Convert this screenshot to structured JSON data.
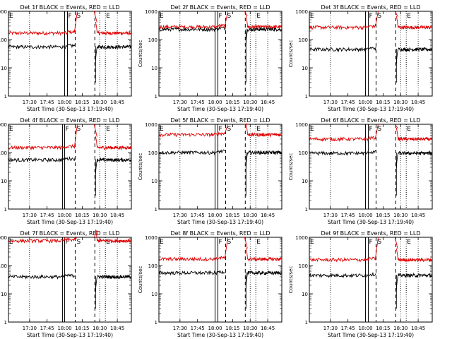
{
  "figure": {
    "start_time_label": "Start Time (30-Sep-13 17:19:40)",
    "ylabel": "Counts/sec",
    "title_suffix": " BLACK = Events, RED = LLD"
  },
  "colors": {
    "events": "#000000",
    "lld": "#e00000"
  },
  "axes": {
    "x_range_minutes": [
      17.2,
      18.95
    ],
    "x_ticks": [
      "17:30",
      "17:45",
      "18:00",
      "18:15",
      "18:30",
      "18:45"
    ],
    "x_tick_values_hours": [
      17.5,
      17.75,
      18.0,
      18.25,
      18.5,
      18.75
    ],
    "y_scale": "log",
    "y_range": [
      1,
      1000
    ],
    "y_ticks": [
      "1",
      "10",
      "100",
      "1000"
    ]
  },
  "markers": {
    "E1_hour": 17.22,
    "F1_hour": 18.0,
    "F2_hour": 18.04,
    "S_hour": 18.15,
    "dashed_hour": 18.43,
    "E2_hour": 18.58,
    "labels": {
      "E": "E",
      "F": "F",
      "S": "S"
    }
  },
  "chart_data": [
    {
      "type": "line",
      "detector": "Det 1f",
      "title": "Det 1f BLACK = Events, RED = LLD",
      "events_level": 55,
      "lld_level": 170,
      "f_span": [
        18.0,
        18.04
      ],
      "series": [
        {
          "name": "BLACK = Events"
        },
        {
          "name": "RED = LLD"
        }
      ]
    },
    {
      "type": "line",
      "detector": "Det 2f",
      "title": "Det 2f BLACK = Events, RED = LLD",
      "events_level": 230,
      "lld_level": 280,
      "f_span": [
        18.0,
        18.04
      ],
      "series": [
        {
          "name": "BLACK = Events"
        },
        {
          "name": "RED = LLD"
        }
      ]
    },
    {
      "type": "line",
      "detector": "Det 3f",
      "title": "Det 3f BLACK = Events, RED = LLD",
      "events_level": 45,
      "lld_level": 270,
      "f_span": [
        18.0,
        18.04
      ],
      "series": [
        {
          "name": "BLACK = Events"
        },
        {
          "name": "RED = LLD"
        }
      ]
    },
    {
      "type": "line",
      "detector": "Det 4f",
      "title": "Det 4f BLACK = Events, RED = LLD",
      "events_level": 55,
      "lld_level": 150,
      "f_span": [
        17.97,
        18.0
      ],
      "series": [
        {
          "name": "BLACK = Events"
        },
        {
          "name": "RED = LLD"
        }
      ]
    },
    {
      "type": "line",
      "detector": "Det 5f",
      "title": "Det 5f BLACK = Events, RED = LLD",
      "events_level": 100,
      "lld_level": 430,
      "f_span": [
        18.0,
        18.04
      ],
      "series": [
        {
          "name": "BLACK = Events"
        },
        {
          "name": "RED = LLD"
        }
      ]
    },
    {
      "type": "line",
      "detector": "Det 6f",
      "title": "Det 6f BLACK = Events, RED = LLD",
      "events_level": 95,
      "lld_level": 300,
      "f_span": [
        18.0,
        18.04
      ],
      "series": [
        {
          "name": "BLACK = Events"
        },
        {
          "name": "RED = LLD"
        }
      ]
    },
    {
      "type": "line",
      "detector": "Det 7f",
      "title": "Det 7f BLACK = Events, RED = LLD",
      "events_level": 40,
      "lld_level": 750,
      "f_span": [
        17.97,
        18.0
      ],
      "series": [
        {
          "name": "BLACK = Events"
        },
        {
          "name": "RED = LLD"
        }
      ]
    },
    {
      "type": "line",
      "detector": "Det 8f",
      "title": "Det 8f BLACK = Events, RED = LLD",
      "events_level": 55,
      "lld_level": 170,
      "f_span": [
        18.0,
        18.04
      ],
      "series": [
        {
          "name": "BLACK = Events"
        },
        {
          "name": "RED = LLD"
        }
      ]
    },
    {
      "type": "line",
      "detector": "Det 9f",
      "title": "Det 9f BLACK = Events, RED = LLD",
      "events_level": 45,
      "lld_level": 160,
      "f_span": [
        18.0,
        18.04
      ],
      "series": [
        {
          "name": "BLACK = Events"
        },
        {
          "name": "RED = LLD"
        }
      ]
    }
  ]
}
